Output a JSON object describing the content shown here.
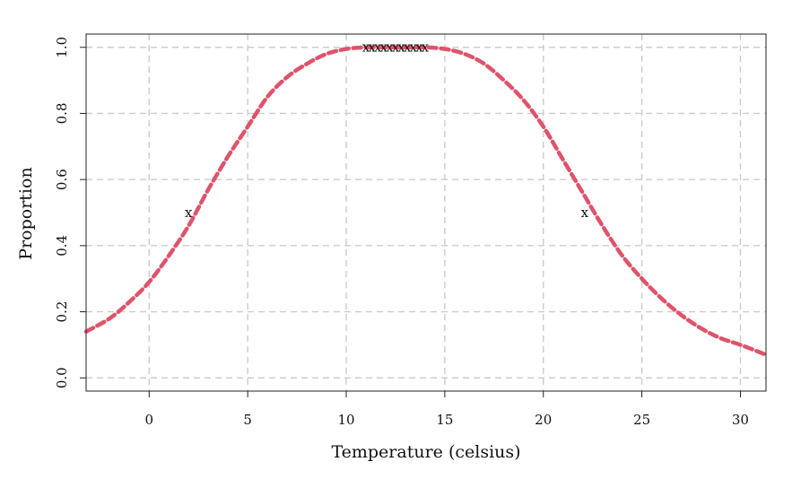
{
  "chart_data": {
    "type": "line",
    "xlabel": "Temperature (celsius)",
    "ylabel": "Proportion",
    "xlim": [
      -3.2,
      31.3
    ],
    "ylim": [
      -0.04,
      1.04
    ],
    "x_ticks": [
      "0",
      "5",
      "10",
      "15",
      "20",
      "25",
      "30"
    ],
    "y_ticks": [
      "0.0",
      "0.2",
      "0.4",
      "0.6",
      "0.8",
      "1.0"
    ],
    "grid": true,
    "series": [
      {
        "color": "#DF536B",
        "style": "dashed",
        "x": [
          -3.2,
          -2,
          -1,
          0,
          1,
          2,
          3,
          4,
          5,
          6,
          7,
          8,
          9,
          10,
          11,
          12,
          13,
          14,
          15,
          16,
          17,
          18,
          19,
          20,
          21,
          22,
          23,
          24,
          25,
          26,
          27,
          28,
          29,
          30,
          31.3
        ],
        "y": [
          0.14,
          0.18,
          0.23,
          0.29,
          0.37,
          0.46,
          0.57,
          0.67,
          0.76,
          0.85,
          0.91,
          0.95,
          0.98,
          0.995,
          1.0,
          1.0,
          1.0,
          1.0,
          0.995,
          0.98,
          0.95,
          0.9,
          0.84,
          0.76,
          0.66,
          0.56,
          0.46,
          0.37,
          0.3,
          0.24,
          0.19,
          0.15,
          0.12,
          0.1,
          0.07
        ]
      }
    ],
    "markers": [
      {
        "label": "x",
        "x": 2.0,
        "y": 0.5
      },
      {
        "label": "x",
        "x": 22.1,
        "y": 0.5
      },
      {
        "label": "x",
        "x": 11.0,
        "y": 1.0
      },
      {
        "label": "x",
        "x": 11.3,
        "y": 1.0
      },
      {
        "label": "x",
        "x": 11.6,
        "y": 1.0
      },
      {
        "label": "x",
        "x": 11.9,
        "y": 1.0
      },
      {
        "label": "x",
        "x": 12.2,
        "y": 1.0
      },
      {
        "label": "x",
        "x": 12.5,
        "y": 1.0
      },
      {
        "label": "x",
        "x": 12.8,
        "y": 1.0
      },
      {
        "label": "x",
        "x": 13.1,
        "y": 1.0
      },
      {
        "label": "x",
        "x": 13.4,
        "y": 1.0
      },
      {
        "label": "x",
        "x": 13.7,
        "y": 1.0
      },
      {
        "label": "x",
        "x": 14.0,
        "y": 1.0
      }
    ]
  }
}
